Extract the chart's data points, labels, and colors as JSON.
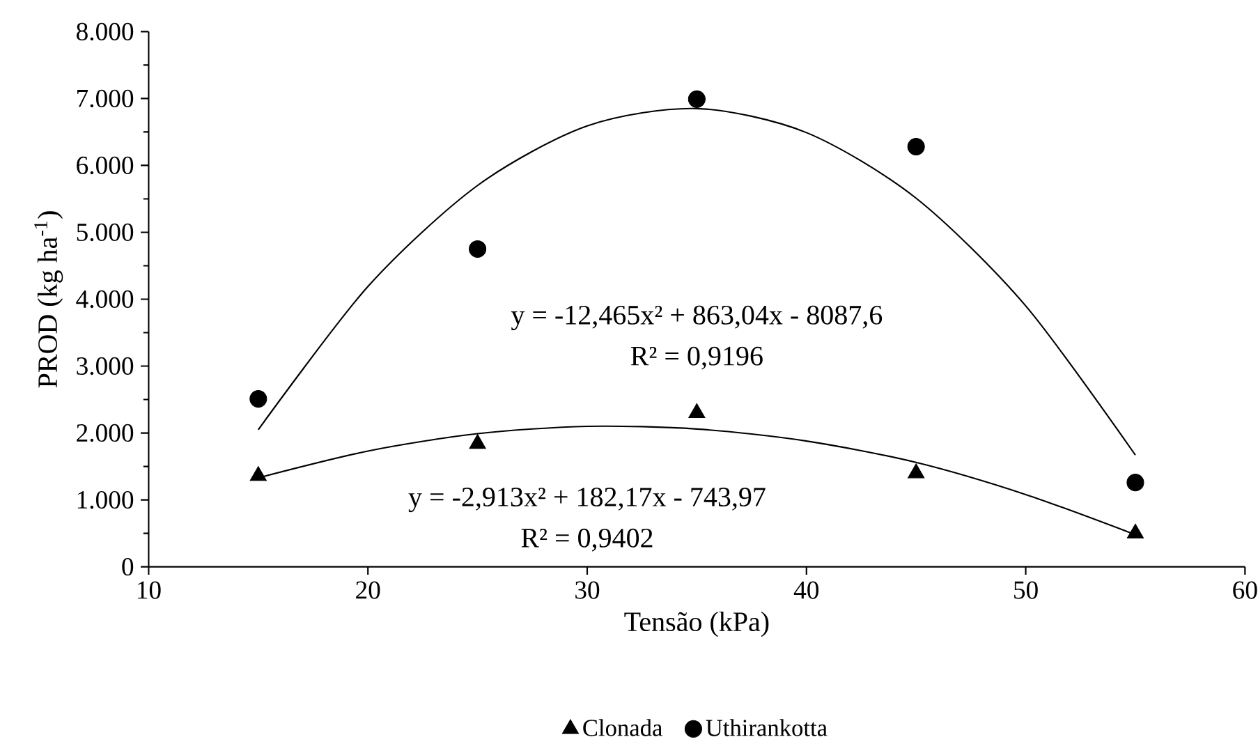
{
  "chart_data": {
    "type": "scatter",
    "xlabel": "Tensão (kPa)",
    "ylabel": "PROD (kg ha$^{-1}$)",
    "xlim": [
      10,
      60
    ],
    "xticks": [
      10,
      20,
      30,
      40,
      50,
      60
    ],
    "ylim": [
      0,
      8000
    ],
    "yticks": [
      {
        "value": 0,
        "label": "0"
      },
      {
        "value": 1000,
        "label": "1.000"
      },
      {
        "value": 2000,
        "label": "2.000"
      },
      {
        "value": 3000,
        "label": "3.000"
      },
      {
        "value": 4000,
        "label": "4.000"
      },
      {
        "value": 5000,
        "label": "5.000"
      },
      {
        "value": 6000,
        "label": "6.000"
      },
      {
        "value": 7000,
        "label": "7.000"
      },
      {
        "value": 8000,
        "label": "8.000"
      }
    ],
    "legend": "bottom",
    "grid": false,
    "series": [
      {
        "name": "Clonada",
        "marker": "triangle",
        "color": "#000000",
        "x": [
          15,
          25,
          35,
          45,
          55
        ],
        "values": [
          1360,
          1840,
          2300,
          1400,
          500
        ]
      },
      {
        "name": "Uthirankotta",
        "marker": "circle",
        "color": "#000000",
        "x": [
          15,
          25,
          35,
          45,
          55
        ],
        "values": [
          2510,
          4750,
          6990,
          6280,
          1260
        ]
      },
      {
        "type": "line",
        "marker": "none",
        "color": "#000000",
        "x": [
          15,
          20,
          25,
          30,
          35,
          40,
          45,
          50,
          55
        ],
        "values": [
          1330,
          1730,
          1990,
          2100,
          2060,
          1880,
          1560,
          1080,
          480
        ]
      },
      {
        "type": "line",
        "marker": "none",
        "color": "#000000",
        "x": [
          15,
          20,
          25,
          30,
          35,
          40,
          45,
          50,
          55
        ],
        "values": [
          2050,
          4190,
          5700,
          6590,
          6850,
          6490,
          5510,
          3900,
          1670
        ]
      }
    ],
    "annotations": [
      "y = -12,465x² + 863,04x - 8087,6",
      "R² = 0,9196",
      "y = -2,913x² + 182,17x - 743,97",
      "R² = 0,9402"
    ]
  }
}
